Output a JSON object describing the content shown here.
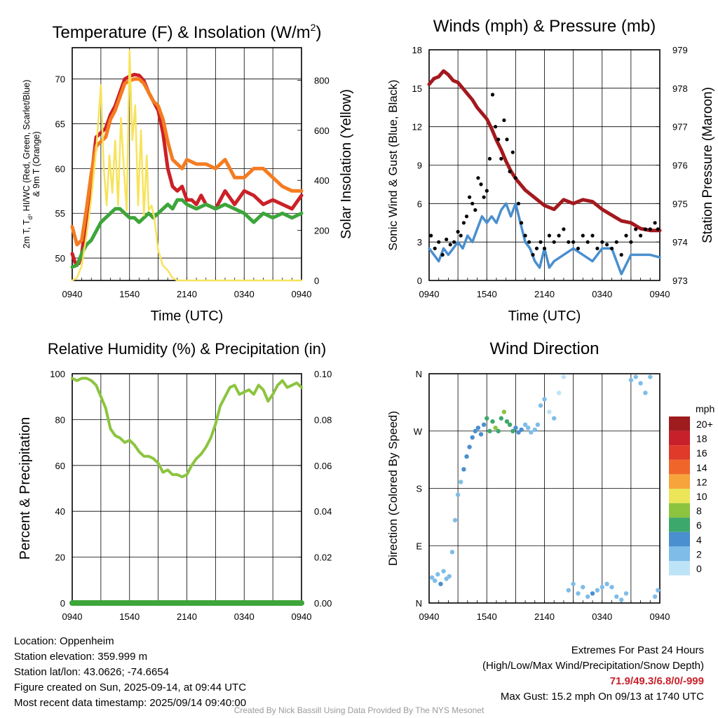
{
  "colors": {
    "red": "#cc2027",
    "orange": "#f47c20",
    "green": "#3da53a",
    "yellow": "#f7e35a",
    "maroon": "#a3191e",
    "blue": "#4a8fcf",
    "black": "#000000",
    "rh": "#8cc43f",
    "precip": "#3da53a"
  },
  "chart_data": [
    {
      "type": "line",
      "title": "Temperature (F) & Insolation (W/m",
      "title_sup": "2",
      "title_end": ")",
      "xlabel": "Time (UTC)",
      "ylabel_line1": "2m T, T",
      "ylabel_sub": "d",
      "ylabel_line1_end": ", HI/WC (Red, Green, Scarlet/Blue)",
      "ylabel_line2": "& 9m T (Orange)",
      "ylabel_right": "Solar Insolation (Yellow)",
      "x_ticks": [
        "0940",
        "1540",
        "2140",
        "0340",
        "0940"
      ],
      "y_ticks_left": [
        "50",
        "55",
        "60",
        "65",
        "70"
      ],
      "y_ticks_right": [
        "0",
        "200",
        "400",
        "600",
        "800"
      ],
      "ylim_left": [
        47.5,
        73.5
      ],
      "ylim_right": [
        0,
        930
      ],
      "x_hours": [
        0,
        24
      ],
      "series": [
        {
          "name": "2m T",
          "color_key": "red",
          "x": [
            0,
            0.3,
            0.7,
            1.0,
            1.5,
            2.0,
            2.5,
            3.0,
            3.5,
            4.0,
            4.5,
            5.0,
            5.5,
            6.0,
            6.5,
            7.0,
            7.5,
            8.0,
            8.5,
            9.0,
            9.5,
            10.0,
            10.5,
            11.0,
            11.5,
            12.0,
            12.5,
            13.0,
            13.5,
            14.0,
            15.0,
            16.0,
            17.0,
            18.0,
            19.0,
            20.0,
            21.0,
            22.0,
            23.0,
            24.0
          ],
          "y": [
            50.5,
            49.5,
            49.4,
            50.5,
            54.5,
            59.0,
            63.5,
            64.0,
            64.5,
            66.0,
            67.0,
            68.5,
            70.0,
            70.3,
            70.5,
            70.4,
            69.8,
            68.5,
            67.5,
            66.5,
            64.0,
            60.0,
            58.0,
            57.5,
            58.0,
            56.5,
            56.5,
            56.0,
            57.0,
            56.0,
            55.5,
            57.5,
            56.0,
            57.5,
            57.0,
            56.0,
            56.5,
            56.0,
            55.5,
            57.0
          ]
        },
        {
          "name": "9m T",
          "color_key": "orange",
          "x": [
            0,
            0.5,
            1.0,
            1.5,
            2.0,
            2.5,
            3.0,
            3.5,
            4.0,
            4.5,
            5.0,
            5.5,
            6.0,
            6.5,
            7.0,
            7.5,
            8.0,
            8.5,
            9.0,
            9.5,
            10.0,
            10.5,
            11.0,
            11.5,
            12.0,
            13.0,
            14.0,
            15.0,
            16.0,
            17.0,
            18.0,
            19.0,
            20.0,
            21.0,
            22.0,
            23.0,
            24.0
          ],
          "y": [
            53.5,
            51.5,
            52.0,
            55.5,
            59.5,
            62.5,
            63.0,
            63.5,
            65.5,
            66.5,
            68.0,
            69.5,
            69.8,
            70.0,
            70.0,
            69.5,
            68.5,
            67.5,
            67.0,
            65.5,
            63.0,
            61.0,
            60.5,
            60.0,
            61.0,
            60.5,
            60.5,
            60.0,
            61.0,
            59.0,
            59.0,
            60.0,
            60.0,
            59.0,
            58.0,
            57.5,
            57.5
          ]
        },
        {
          "name": "Td",
          "color_key": "green",
          "x": [
            0,
            0.5,
            1.0,
            1.5,
            2.0,
            2.5,
            3.0,
            3.5,
            4.0,
            4.5,
            5.0,
            5.5,
            6.0,
            6.5,
            7.0,
            7.5,
            8.0,
            8.5,
            9.0,
            9.5,
            10.0,
            10.5,
            11.0,
            11.5,
            12.0,
            13.0,
            14.0,
            15.0,
            16.0,
            17.0,
            18.0,
            19.0,
            20.0,
            21.0,
            22.0,
            23.0,
            24.0
          ],
          "y": [
            49.0,
            49.2,
            50.5,
            51.5,
            52.0,
            53.0,
            54.0,
            54.5,
            55.0,
            55.5,
            55.5,
            55.0,
            54.5,
            54.5,
            54.0,
            54.5,
            55.0,
            54.5,
            55.0,
            55.5,
            56.0,
            55.5,
            56.5,
            56.5,
            56.0,
            55.5,
            56.0,
            55.5,
            56.0,
            55.5,
            55.0,
            54.0,
            55.0,
            54.5,
            55.0,
            54.5,
            55.0
          ]
        },
        {
          "name": "Solar Insolation",
          "color_key": "yellow",
          "axis": "right",
          "x": [
            0,
            0.5,
            1.0,
            1.5,
            2.0,
            2.5,
            3.0,
            3.3,
            3.6,
            3.9,
            4.2,
            4.5,
            4.8,
            5.1,
            5.4,
            5.7,
            6.0,
            6.3,
            6.6,
            6.9,
            7.2,
            7.5,
            7.8,
            8.0,
            8.3,
            8.6,
            9.0,
            9.5,
            10.0,
            10.5,
            11.0,
            12.0,
            18.0,
            24.0
          ],
          "y": [
            0,
            10,
            60,
            180,
            330,
            520,
            780,
            450,
            300,
            500,
            350,
            560,
            300,
            650,
            450,
            280,
            920,
            560,
            700,
            300,
            600,
            260,
            500,
            280,
            300,
            250,
            120,
            60,
            40,
            10,
            0,
            0,
            0,
            0
          ]
        }
      ]
    },
    {
      "type": "scatter",
      "title": "Winds (mph) & Pressure (mb)",
      "xlabel": "Time (UTC)",
      "ylabel": "Sonic Wind & Gust (Blue, Black)",
      "ylabel_right": "Station Pressure (Maroon)",
      "x_ticks": [
        "0940",
        "1540",
        "2140",
        "0340",
        "0940"
      ],
      "y_ticks_left": [
        "0",
        "3",
        "6",
        "9",
        "12",
        "15",
        "18"
      ],
      "y_ticks_right": [
        "973",
        "974",
        "975",
        "976",
        "977",
        "978",
        "979"
      ],
      "ylim_left": [
        0,
        18
      ],
      "ylim_right": [
        973,
        979
      ],
      "x_hours": [
        0,
        24
      ],
      "series": [
        {
          "name": "Station Pressure",
          "color_key": "maroon",
          "axis": "right",
          "x": [
            0,
            0.5,
            1.0,
            1.5,
            2.0,
            2.5,
            3.0,
            3.5,
            4.0,
            4.5,
            5.0,
            5.5,
            6.0,
            6.5,
            7.0,
            7.5,
            8.0,
            8.5,
            9.0,
            9.5,
            10.0,
            10.5,
            11.0,
            11.5,
            12.0,
            12.5,
            13.0,
            14.0,
            15.0,
            16.0,
            17.0,
            18.0,
            19.0,
            20.0,
            21.0,
            22.0,
            23.0,
            24.0
          ],
          "y": [
            978.1,
            978.25,
            978.3,
            978.45,
            978.35,
            978.2,
            978.15,
            978.0,
            977.85,
            977.7,
            977.5,
            977.35,
            977.2,
            976.95,
            976.65,
            976.4,
            976.1,
            975.85,
            975.65,
            975.5,
            975.35,
            975.25,
            975.15,
            975.05,
            974.95,
            974.9,
            974.85,
            975.1,
            975.0,
            975.1,
            975.05,
            974.85,
            974.7,
            974.55,
            974.5,
            974.35,
            974.3,
            974.3
          ]
        },
        {
          "name": "Sonic Wind",
          "color_key": "blue",
          "x": [
            0,
            0.5,
            1.0,
            1.5,
            2.0,
            2.5,
            3.0,
            3.5,
            4.0,
            4.5,
            5.0,
            5.5,
            6.0,
            6.5,
            7.0,
            7.5,
            8.0,
            8.5,
            9.0,
            9.5,
            10.0,
            10.5,
            11.0,
            11.5,
            12.0,
            12.5,
            13.0,
            14.0,
            15.0,
            16.0,
            17.0,
            18.0,
            19.0,
            20.0,
            21.0,
            22.0,
            23.0,
            24.0
          ],
          "y": [
            2.5,
            2.0,
            1.5,
            2.5,
            2.0,
            2.5,
            3.0,
            2.5,
            3.5,
            3.0,
            4.0,
            5.0,
            4.5,
            5.0,
            4.5,
            5.5,
            6.0,
            5.0,
            6.0,
            4.5,
            3.0,
            2.5,
            1.5,
            1.0,
            2.5,
            1.0,
            1.5,
            2.0,
            2.5,
            2.0,
            1.5,
            2.5,
            2.5,
            0.5,
            2.0,
            2.0,
            2.0,
            1.8
          ]
        },
        {
          "name": "Gust",
          "color_key": "black",
          "x": [
            0.2,
            0.6,
            1.0,
            1.4,
            1.8,
            2.2,
            2.6,
            3.0,
            3.3,
            3.6,
            3.9,
            4.2,
            4.5,
            4.8,
            5.1,
            5.4,
            5.7,
            6.0,
            6.3,
            6.6,
            6.9,
            7.2,
            7.5,
            7.8,
            8.1,
            8.4,
            8.7,
            9.0,
            9.3,
            9.6,
            10.0,
            10.4,
            10.8,
            11.2,
            11.6,
            12.0,
            12.5,
            13.0,
            13.5,
            14.0,
            14.5,
            15.0,
            15.5,
            16.0,
            16.5,
            17.0,
            17.5,
            18.0,
            18.5,
            19.0,
            19.5,
            20.0,
            20.5,
            21.0,
            21.5,
            22.0,
            22.5,
            23.0,
            23.5,
            23.8
          ],
          "y": [
            3.5,
            2.5,
            3.0,
            2.0,
            3.2,
            2.8,
            3.0,
            3.8,
            3.5,
            4.5,
            5.0,
            6.5,
            6.0,
            5.5,
            8.0,
            7.5,
            6.5,
            7.0,
            9.5,
            14.5,
            12.0,
            11.0,
            9.5,
            12.5,
            11.0,
            8.5,
            10.0,
            8.0,
            6.0,
            4.5,
            3.5,
            3.0,
            2.0,
            2.5,
            3.0,
            2.5,
            3.5,
            3.0,
            3.5,
            4.0,
            3.0,
            3.0,
            2.5,
            3.5,
            3.0,
            3.5,
            2.5,
            3.0,
            2.8,
            2.5,
            3.0,
            2.0,
            3.5,
            3.0,
            4.0,
            3.5,
            4.0,
            4.0,
            4.5,
            4.0
          ]
        }
      ]
    },
    {
      "type": "line",
      "title": "Relative Humidity (%) & Precipitation (in)",
      "ylabel": "Percent & Precipitation",
      "x_ticks": [
        "0940",
        "1540",
        "2140",
        "0340",
        "0940"
      ],
      "y_ticks_left": [
        "0",
        "20",
        "40",
        "60",
        "80",
        "100"
      ],
      "y_ticks_right": [
        "0.00",
        "0.02",
        "0.04",
        "0.06",
        "0.08",
        "0.10"
      ],
      "ylim_left": [
        0,
        100
      ],
      "ylim_right": [
        0,
        0.1
      ],
      "x_hours": [
        0,
        24
      ],
      "series": [
        {
          "name": "RH",
          "color_key": "rh",
          "x": [
            0,
            0.5,
            1.0,
            1.5,
            2.0,
            2.5,
            3.0,
            3.5,
            4.0,
            4.5,
            5.0,
            5.5,
            6.0,
            6.5,
            7.0,
            7.5,
            8.0,
            8.5,
            9.0,
            9.5,
            10.0,
            10.5,
            11.0,
            11.5,
            12.0,
            12.5,
            13.0,
            13.5,
            14.0,
            14.5,
            15.0,
            15.5,
            16.0,
            16.5,
            17.0,
            17.5,
            18.0,
            18.5,
            19.0,
            19.5,
            20.0,
            20.5,
            21.0,
            21.5,
            22.0,
            22.5,
            23.0,
            23.5,
            24.0
          ],
          "y": [
            98,
            97,
            98,
            98,
            97,
            95,
            90,
            85,
            76,
            73,
            72,
            70,
            71,
            69,
            66,
            64,
            64,
            63,
            61,
            57,
            58,
            56,
            56,
            55,
            56,
            60,
            63,
            65,
            68,
            72,
            78,
            86,
            90,
            94,
            95,
            91,
            92,
            93,
            91,
            95,
            93,
            88,
            91,
            95,
            97,
            94,
            95,
            96,
            94
          ]
        },
        {
          "name": "Precipitation",
          "color_key": "precip",
          "axis": "right",
          "x": [
            0,
            24
          ],
          "y": [
            0,
            0
          ]
        }
      ]
    },
    {
      "type": "scatter",
      "title": "Wind Direction",
      "ylabel": "Direction (Colored By Speed)",
      "x_ticks": [
        "0940",
        "1540",
        "2140",
        "0340",
        "0940"
      ],
      "y_ticks_left": [
        "N",
        "E",
        "S",
        "W",
        "N"
      ],
      "ylim_left": [
        0,
        360
      ],
      "x_hours": [
        0,
        24
      ],
      "legend": {
        "title": "mph",
        "labels": [
          "20+",
          "18",
          "16",
          "14",
          "12",
          "10",
          "8",
          "6",
          "4",
          "2",
          "0"
        ],
        "colors": [
          "#9e1b1e",
          "#c8202a",
          "#e03a2a",
          "#f0662a",
          "#f7a43c",
          "#ece55a",
          "#8cc43f",
          "#3da86b",
          "#4a8fcf",
          "#7fbde8",
          "#bde3f7"
        ]
      },
      "points": {
        "x": [
          0.3,
          0.6,
          0.9,
          1.2,
          1.5,
          1.8,
          2.1,
          2.4,
          2.7,
          3.0,
          3.3,
          3.6,
          3.9,
          4.2,
          4.5,
          4.8,
          5.1,
          5.4,
          5.7,
          6.0,
          6.3,
          6.6,
          6.9,
          7.2,
          7.5,
          7.8,
          8.1,
          8.4,
          8.7,
          9.0,
          9.3,
          9.6,
          10.0,
          10.3,
          10.6,
          11.0,
          11.3,
          11.6,
          12.0,
          12.5,
          13.0,
          13.5,
          14.0,
          14.5,
          15.0,
          15.5,
          16.0,
          16.5,
          17.0,
          17.5,
          18.0,
          18.5,
          19.0,
          19.5,
          20.0,
          20.5,
          21.0,
          21.5,
          22.0,
          22.5,
          23.0,
          23.5,
          23.8
        ],
        "y": [
          40,
          35,
          45,
          30,
          50,
          38,
          42,
          80,
          130,
          170,
          190,
          210,
          230,
          245,
          260,
          270,
          275,
          265,
          280,
          290,
          270,
          285,
          275,
          270,
          290,
          300,
          285,
          280,
          270,
          275,
          268,
          272,
          280,
          275,
          268,
          272,
          280,
          310,
          320,
          300,
          290,
          330,
          355,
          20,
          30,
          15,
          25,
          10,
          15,
          20,
          25,
          30,
          25,
          10,
          5,
          15,
          350,
          355,
          345,
          330,
          355,
          10,
          20
        ],
        "speed": [
          2,
          1,
          2,
          3,
          2,
          1,
          2,
          1,
          1,
          2,
          2,
          3,
          3,
          3,
          4,
          4,
          3,
          4,
          4,
          5,
          5,
          6,
          7,
          6,
          6,
          7,
          5,
          5,
          6,
          4,
          3,
          3,
          2,
          2,
          2,
          2,
          1,
          1,
          1,
          0,
          1,
          0,
          0,
          1,
          2,
          1,
          2,
          2,
          3,
          1,
          1,
          2,
          1,
          2,
          1,
          1,
          2,
          1,
          2,
          1,
          2,
          1,
          2
        ]
      }
    }
  ],
  "footer": {
    "location": "Location: Oppenheim",
    "elevation": "Station elevation: 359.999 m",
    "latlon": "Station lat/lon: 43.0626; -74.6654",
    "created": "Figure created on Sun, 2025-09-14, at 09:44 UTC",
    "recent": "Most recent data timestamp: 2025/09/14 09:40:00",
    "extremes_title": "Extremes For Past 24 Hours",
    "extremes_subtitle": "(High/Low/Max Wind/Precipitation/Snow Depth)",
    "extremes_values": "71.9/49.3/6.8/0/-999",
    "max_gust": "Max Gust: 15.2 mph On 09/13 at 1740 UTC",
    "credit": "Created By Nick Bassill Using Data Provided By The NYS Mesonet"
  }
}
